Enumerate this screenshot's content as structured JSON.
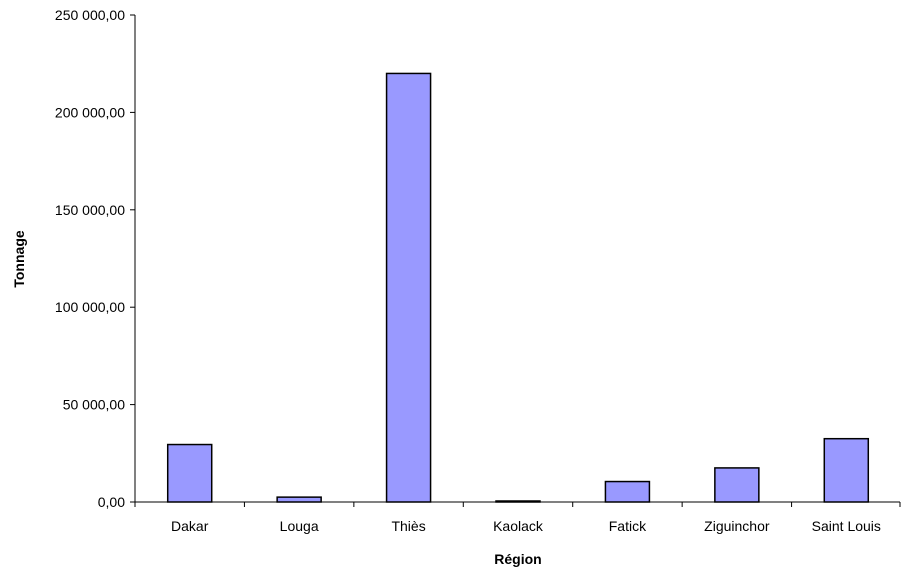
{
  "chart_data": {
    "type": "bar",
    "title": "",
    "xlabel": "Région",
    "ylabel": "Tonnage",
    "categories": [
      "Dakar",
      "Louga",
      "Thiès",
      "Kaolack",
      "Fatick",
      "Ziguinchor",
      "Saint Louis"
    ],
    "values": [
      29500,
      2500,
      220000,
      400,
      10500,
      17500,
      32500
    ],
    "ylim": [
      0,
      250000
    ],
    "yticks": [
      0,
      50000,
      100000,
      150000,
      200000,
      250000
    ],
    "ytick_labels": [
      "0,00",
      "50 000,00",
      "100 000,00",
      "150 000,00",
      "200 000,00",
      "250 000,00"
    ],
    "grid": false,
    "legend": "none",
    "bar_color": "#9999FF",
    "bar_stroke": "#000000"
  }
}
